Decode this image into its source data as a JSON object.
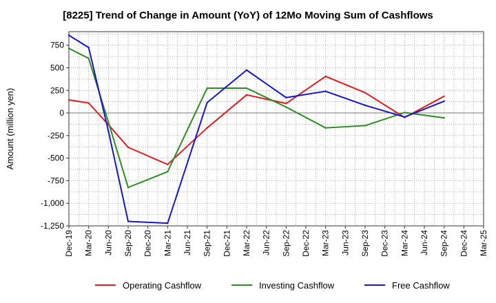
{
  "chart_data": {
    "type": "line",
    "title": "[8225]  Trend of Change in Amount (YoY) of 12Mo Moving Sum of Cashflows",
    "xlabel": "",
    "ylabel": "Amount (million yen)",
    "ylim": [
      -1250,
      900
    ],
    "yticks": [
      750,
      500,
      250,
      0,
      -250,
      -500,
      -750,
      -1000,
      -1250
    ],
    "ytick_labels": [
      "750",
      "500",
      "250",
      "0",
      "-250",
      "-500",
      "-750",
      "-1,000",
      "-1,250"
    ],
    "categories": [
      "Dec-19",
      "Mar-20",
      "Jun-20",
      "Sep-20",
      "Dec-20",
      "Mar-21",
      "Jun-21",
      "Sep-21",
      "Dec-21",
      "Mar-22",
      "Jun-22",
      "Sep-22",
      "Dec-22",
      "Mar-23",
      "Jun-23",
      "Sep-23",
      "Dec-23",
      "Mar-24",
      "Jun-24",
      "Sep-24",
      "Dec-24",
      "Mar-25"
    ],
    "grid": true,
    "legend_position": "bottom",
    "series": [
      {
        "name": "Operating Cashflow",
        "color": "#e41a1c",
        "values": [
          145,
          110,
          -130,
          -380,
          null,
          -570,
          null,
          -165,
          null,
          200,
          null,
          105,
          null,
          405,
          null,
          225,
          null,
          -50,
          null,
          185,
          null,
          null
        ]
      },
      {
        "name": "Investing Cashflow",
        "color": "#2e8b22",
        "values": [
          715,
          605,
          -100,
          -825,
          null,
          -650,
          null,
          275,
          null,
          275,
          null,
          65,
          null,
          -165,
          null,
          -140,
          null,
          5,
          null,
          -55,
          null,
          null
        ]
      },
      {
        "name": "Free Cashflow",
        "color": "#1515cc",
        "values": [
          860,
          725,
          -200,
          -1200,
          null,
          -1220,
          null,
          115,
          null,
          475,
          null,
          170,
          null,
          240,
          null,
          85,
          null,
          -45,
          null,
          130,
          null,
          null
        ]
      }
    ]
  }
}
